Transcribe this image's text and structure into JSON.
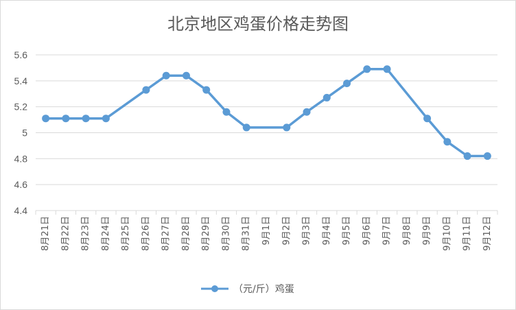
{
  "chart_data": {
    "type": "line",
    "title": "北京地区鸡蛋价格走势图",
    "categories": [
      "8月21日",
      "8月22日",
      "8月23日",
      "8月24日",
      "8月25日",
      "8月26日",
      "8月27日",
      "8月28日",
      "8月29日",
      "8月30日",
      "8月31日",
      "9月1日",
      "9月2日",
      "9月3日",
      "9月4日",
      "9月5日",
      "9月6日",
      "9月7日",
      "9月8日",
      "9月9日",
      "9月10日",
      "9月11日",
      "9月12日"
    ],
    "series": [
      {
        "name": "（元/斤）鸡蛋",
        "values": [
          5.11,
          5.11,
          5.11,
          5.11,
          null,
          5.33,
          5.44,
          5.44,
          5.33,
          5.16,
          5.04,
          null,
          5.04,
          5.16,
          5.27,
          5.38,
          5.49,
          5.49,
          null,
          5.11,
          4.93,
          4.82,
          4.82
        ]
      }
    ],
    "yticks": [
      "4.4",
      "4.6",
      "4.8",
      "5",
      "5.2",
      "5.4",
      "5.6"
    ],
    "ylim": [
      4.4,
      5.6
    ],
    "grid": true,
    "legend": "bottom",
    "colors": {
      "line": "#5b9bd5",
      "grid": "#d9d9d9",
      "text": "#595959"
    }
  }
}
